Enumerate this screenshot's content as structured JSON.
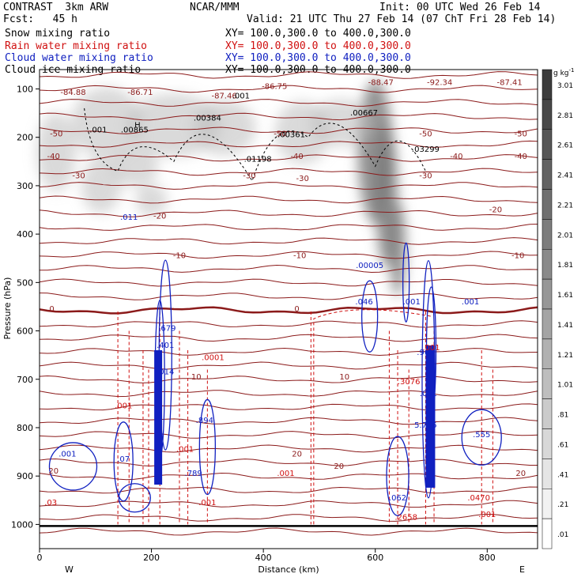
{
  "header": {
    "model": "CONTRAST  3km ARW",
    "org": "NCAR/MMM",
    "init": "Init: 00 UTC Wed 26 Feb 14",
    "fcst": "Fcst:   45 h",
    "valid": "Valid: 21 UTC Thu 27 Feb 14 (07 ChT Fri 28 Feb 14)"
  },
  "legend": [
    {
      "name": "Snow mixing ratio",
      "xy": "XY= 100.0,300.0 to 400.0,300.0",
      "color": "#000000"
    },
    {
      "name": "Rain water mixing ratio",
      "xy": "XY= 100.0,300.0 to 400.0,300.0",
      "color": "#d01010"
    },
    {
      "name": "Cloud water mixing ratio",
      "xy": "XY= 100.0,300.0 to 400.0,300.0",
      "color": "#1020c0"
    },
    {
      "name": "Cloud ice mixing ratio",
      "xy": "XY= 100.0,300.0 to 400.0,300.0",
      "color": "#000000"
    }
  ],
  "colorbar": {
    "unit": "g kg",
    "unit_exp": "-1",
    "labels": [
      "3.01",
      "2.81",
      "2.61",
      "2.41",
      "2.21",
      "2.01",
      "1.81",
      "1.61",
      "1.41",
      "1.21",
      "1.01",
      ".81",
      ".61",
      ".41",
      ".21",
      ".01"
    ]
  },
  "chart_data": {
    "type": "cross-section",
    "xlabel": "Distance (km)",
    "ylabel": "Pressure (hPa)",
    "xlim": [
      0,
      890
    ],
    "ylim": [
      1050,
      60
    ],
    "x_ticks": [
      "0",
      "200",
      "400",
      "600",
      "800"
    ],
    "y_ticks": [
      "100",
      "200",
      "300",
      "400",
      "500",
      "600",
      "700",
      "800",
      "900",
      "1000"
    ],
    "left_end": "W",
    "right_end": "E",
    "temperature_labels": [
      {
        "x": 330,
        "p": 120,
        "t": "-87.46"
      },
      {
        "x": 60,
        "p": 112,
        "t": "-84.88"
      },
      {
        "x": 180,
        "p": 112,
        "t": "-86.71"
      },
      {
        "x": 420,
        "p": 100,
        "t": "-86.75"
      },
      {
        "x": 610,
        "p": 92,
        "t": "-88.47"
      },
      {
        "x": 715,
        "p": 92,
        "t": "-92.34"
      },
      {
        "x": 840,
        "p": 92,
        "t": "-87.41"
      },
      {
        "x": 30,
        "p": 198,
        "t": "-50"
      },
      {
        "x": 430,
        "p": 198,
        "t": "-50"
      },
      {
        "x": 690,
        "p": 198,
        "t": "-50"
      },
      {
        "x": 860,
        "p": 198,
        "t": "-50"
      },
      {
        "x": 25,
        "p": 245,
        "t": "-40"
      },
      {
        "x": 460,
        "p": 245,
        "t": "-40"
      },
      {
        "x": 745,
        "p": 245,
        "t": "-40"
      },
      {
        "x": 860,
        "p": 245,
        "t": "-40"
      },
      {
        "x": 70,
        "p": 285,
        "t": "-30"
      },
      {
        "x": 375,
        "p": 285,
        "t": "-30"
      },
      {
        "x": 470,
        "p": 290,
        "t": "-30"
      },
      {
        "x": 690,
        "p": 285,
        "t": "-30"
      },
      {
        "x": 215,
        "p": 368,
        "t": "-20"
      },
      {
        "x": 815,
        "p": 355,
        "t": "-20"
      },
      {
        "x": 250,
        "p": 450,
        "t": "-10"
      },
      {
        "x": 465,
        "p": 450,
        "t": "-10"
      },
      {
        "x": 855,
        "p": 450,
        "t": "-10"
      },
      {
        "x": 22,
        "p": 560,
        "t": "0"
      },
      {
        "x": 460,
        "p": 560,
        "t": "0"
      },
      {
        "x": 280,
        "p": 700,
        "t": "10"
      },
      {
        "x": 545,
        "p": 700,
        "t": "10"
      },
      {
        "x": 460,
        "p": 860,
        "t": "20"
      },
      {
        "x": 25,
        "p": 895,
        "t": "20"
      },
      {
        "x": 535,
        "p": 885,
        "t": "20"
      },
      {
        "x": 860,
        "p": 900,
        "t": "20"
      }
    ],
    "snow_labels": [
      {
        "x": 175,
        "p": 180,
        "t": "H"
      },
      {
        "x": 170,
        "p": 190,
        "t": ".00865"
      },
      {
        "x": 105,
        "p": 190,
        "t": ".001"
      },
      {
        "x": 300,
        "p": 165,
        "t": ".00384"
      },
      {
        "x": 450,
        "p": 200,
        "t": ".00361"
      },
      {
        "x": 580,
        "p": 155,
        "t": ".00667"
      },
      {
        "x": 690,
        "p": 230,
        "t": ".03299"
      },
      {
        "x": 390,
        "p": 250,
        "t": ".01198"
      },
      {
        "x": 360,
        "p": 120,
        "t": ".001"
      }
    ],
    "cloud_labels": [
      {
        "x": 160,
        "p": 370,
        "t": ".011"
      },
      {
        "x": 590,
        "p": 470,
        "t": ".00005"
      },
      {
        "x": 580,
        "p": 545,
        "t": ".046"
      },
      {
        "x": 665,
        "p": 545,
        "t": ".001"
      },
      {
        "x": 770,
        "p": 545,
        "t": ".001"
      },
      {
        "x": 228,
        "p": 600,
        "t": ".679"
      },
      {
        "x": 225,
        "p": 635,
        "t": ".401"
      },
      {
        "x": 225,
        "p": 690,
        "t": ".014"
      },
      {
        "x": 295,
        "p": 790,
        "t": ".894"
      },
      {
        "x": 275,
        "p": 900,
        "t": ".789"
      },
      {
        "x": 150,
        "p": 870,
        "t": ".07"
      },
      {
        "x": 50,
        "p": 860,
        "t": ".001"
      },
      {
        "x": 690,
        "p": 650,
        "t": ".965"
      },
      {
        "x": 695,
        "p": 735,
        "t": ".001"
      },
      {
        "x": 690,
        "p": 800,
        "t": "5.795"
      },
      {
        "x": 790,
        "p": 820,
        "t": ".555"
      },
      {
        "x": 640,
        "p": 950,
        "t": ".062"
      }
    ],
    "rain_labels": [
      {
        "x": 310,
        "p": 660,
        "t": ".0001"
      },
      {
        "x": 660,
        "p": 710,
        "t": ".3076"
      },
      {
        "x": 150,
        "p": 760,
        "t": ".001"
      },
      {
        "x": 260,
        "p": 850,
        "t": ".001"
      },
      {
        "x": 440,
        "p": 900,
        "t": ".001"
      },
      {
        "x": 300,
        "p": 960,
        "t": ".001"
      },
      {
        "x": 20,
        "p": 960,
        "t": ".03"
      },
      {
        "x": 655,
        "p": 990,
        "t": ".2658"
      },
      {
        "x": 785,
        "p": 950,
        "t": ".0470"
      },
      {
        "x": 800,
        "p": 985,
        "t": ".001"
      },
      {
        "x": 700,
        "p": 640,
        "t": ".001"
      }
    ]
  }
}
